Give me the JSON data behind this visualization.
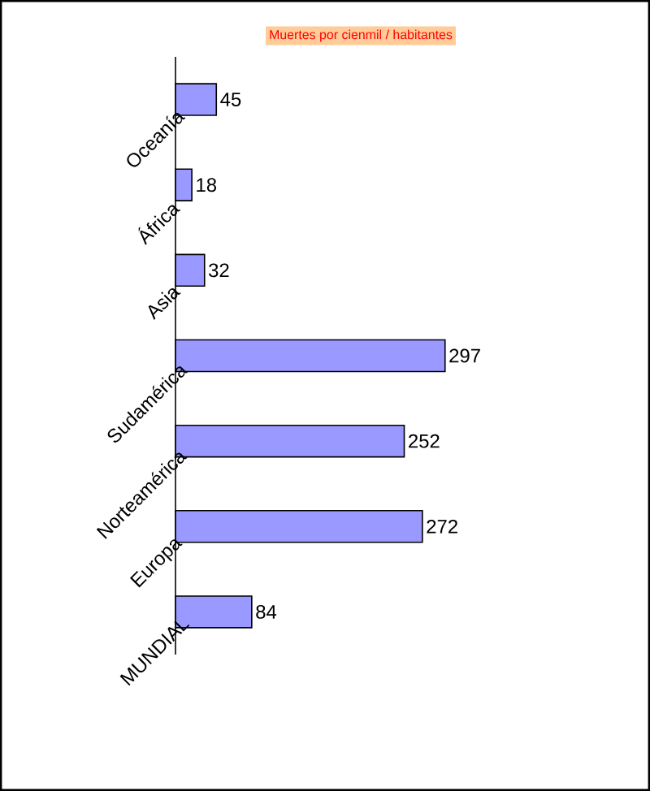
{
  "chart_data": {
    "type": "bar",
    "orientation": "horizontal",
    "title": "Muertes por cienmil / habitantes",
    "categories": [
      "Oceanía",
      "África",
      "Asia",
      "Sudamérica",
      "Norteamérica",
      "Europa",
      "MUNDIAL"
    ],
    "values": [
      45,
      18,
      32,
      297,
      252,
      272,
      84
    ],
    "color": "#9999ff",
    "data_labels": true
  }
}
